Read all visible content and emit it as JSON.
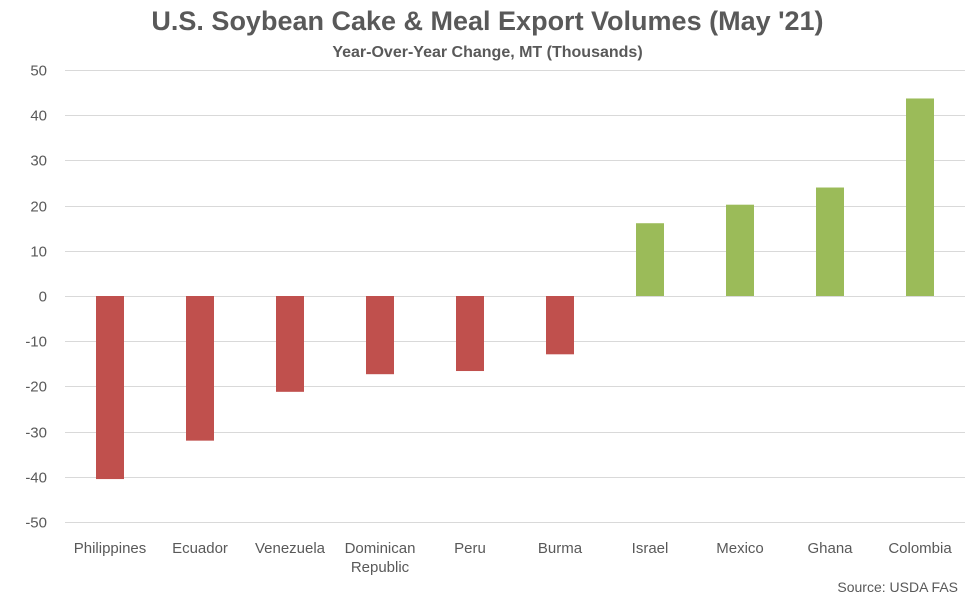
{
  "chart_data": {
    "type": "bar",
    "title": "U.S. Soybean Cake & Meal Export Volumes (May '21)",
    "subtitle": "Year-Over-Year Change, MT (Thousands)",
    "categories": [
      "Philippines",
      "Ecuador",
      "Venezuela",
      "Dominican Republic",
      "Peru",
      "Burma",
      "Israel",
      "Mexico",
      "Ghana",
      "Colombia"
    ],
    "category_lines": [
      [
        "Philippines"
      ],
      [
        "Ecuador"
      ],
      [
        "Venezuela"
      ],
      [
        "Dominican",
        "Republic"
      ],
      [
        "Peru"
      ],
      [
        "Burma"
      ],
      [
        "Israel"
      ],
      [
        "Mexico"
      ],
      [
        "Ghana"
      ],
      [
        "Colombia"
      ]
    ],
    "values": [
      -40.5,
      -32.0,
      -21.2,
      -17.3,
      -16.6,
      -12.9,
      16.1,
      20.2,
      24.0,
      43.7
    ],
    "ylim": [
      -50,
      50
    ],
    "yticks": [
      50,
      40,
      30,
      20,
      10,
      0,
      -10,
      -20,
      -30,
      -40,
      -50
    ],
    "grid": true,
    "legend": "none",
    "colors": {
      "positive": "#9BBB59",
      "negative": "#C0504D",
      "grid": "#D9D9D9",
      "text": "#595959"
    },
    "source": "Source: USDA FAS"
  }
}
